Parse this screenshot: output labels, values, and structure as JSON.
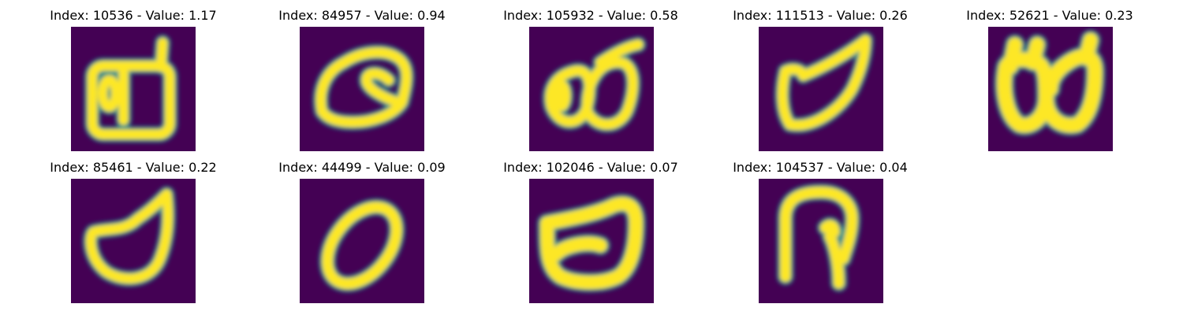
{
  "colors": {
    "background": "#440154",
    "mid_low": "#31688e",
    "mid": "#21918c",
    "mid_high": "#5ec962",
    "foreground": "#fde725"
  },
  "panels": [
    {
      "index": 10536,
      "value": 1.17,
      "title": "Index: 10536 - Value: 1.17"
    },
    {
      "index": 84957,
      "value": 0.94,
      "title": "Index: 84957 - Value: 0.94"
    },
    {
      "index": 105932,
      "value": 0.58,
      "title": "Index: 105932 - Value: 0.58"
    },
    {
      "index": 111513,
      "value": 0.26,
      "title": "Index: 111513 - Value: 0.26"
    },
    {
      "index": 52621,
      "value": 0.23,
      "title": "Index: 52621 - Value: 0.23"
    },
    {
      "index": 85461,
      "value": 0.22,
      "title": "Index: 85461 - Value: 0.22"
    },
    {
      "index": 44499,
      "value": 0.09,
      "title": "Index: 44499 - Value: 0.09"
    },
    {
      "index": 102046,
      "value": 0.07,
      "title": "Index: 102046 - Value: 0.07"
    },
    {
      "index": 104537,
      "value": 0.04,
      "title": "Index: 104537 - Value: 0.04"
    }
  ]
}
